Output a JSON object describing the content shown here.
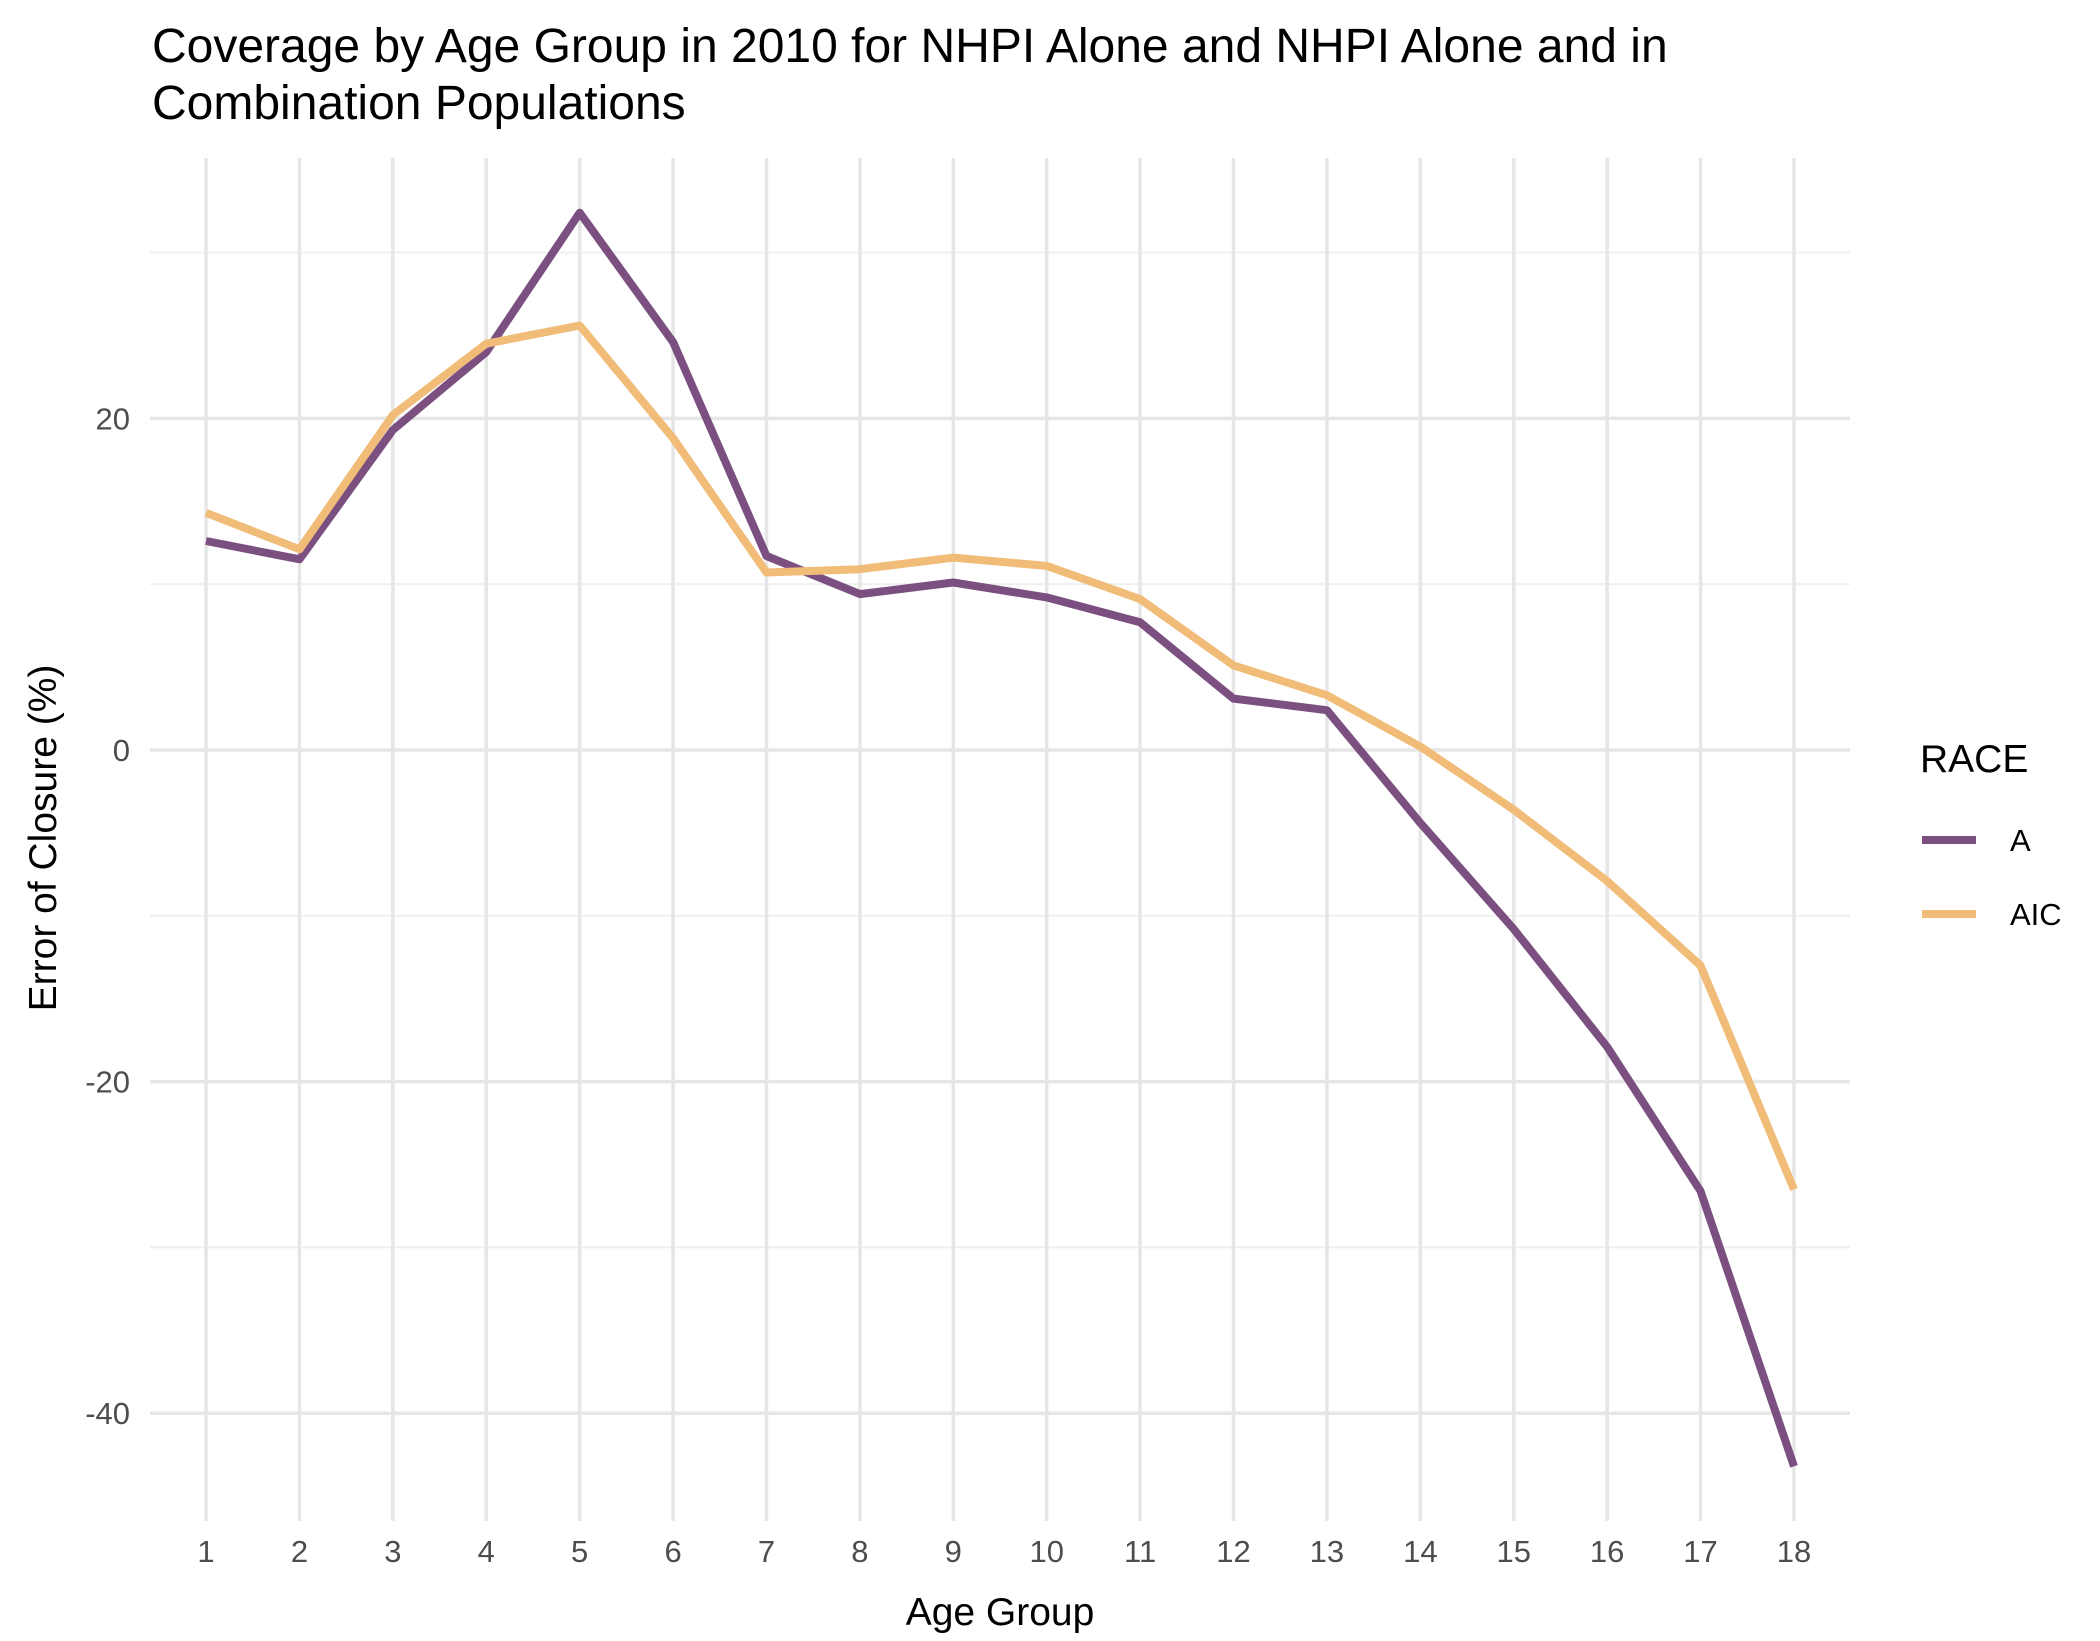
{
  "chart_data": {
    "type": "line",
    "title": "Coverage by Age Group in 2010 for NHPI Alone and NHPI Alone and in Combination Populations",
    "title_lines": [
      "Coverage by Age Group in 2010 for NHPI Alone and NHPI Alone and in",
      "Combination Populations"
    ],
    "xlabel": "Age Group",
    "ylabel": "Error of Closure (%)",
    "x": [
      1,
      2,
      3,
      4,
      5,
      6,
      7,
      8,
      9,
      10,
      11,
      12,
      13,
      14,
      15,
      16,
      17,
      18
    ],
    "x_tick_labels": [
      "1",
      "2",
      "3",
      "4",
      "5",
      "6",
      "7",
      "8",
      "9",
      "10",
      "11",
      "12",
      "13",
      "14",
      "15",
      "16",
      "17",
      "18"
    ],
    "y_ticks": [
      -40,
      -20,
      0,
      20
    ],
    "y_tick_labels": [
      "-40",
      "-20",
      "0",
      "20"
    ],
    "xlim": [
      0.4,
      18.6
    ],
    "ylim": [
      -46.5,
      35.7
    ],
    "grid": true,
    "legend": {
      "title": "RACE",
      "position": "right"
    },
    "series": [
      {
        "name": "A",
        "color": "#7b5080",
        "values": [
          12.6,
          11.5,
          19.3,
          24.0,
          32.4,
          24.6,
          11.7,
          9.4,
          10.1,
          9.2,
          7.7,
          3.1,
          2.4,
          -4.4,
          -10.8,
          -17.9,
          -26.6,
          -43.2
        ]
      },
      {
        "name": "AIC",
        "color": "#f0bc78",
        "values": [
          14.3,
          12.1,
          20.2,
          24.5,
          25.6,
          18.8,
          10.7,
          10.9,
          11.6,
          11.1,
          9.1,
          5.1,
          3.3,
          0.2,
          -3.6,
          -7.9,
          -13.0,
          -26.5
        ]
      }
    ]
  }
}
